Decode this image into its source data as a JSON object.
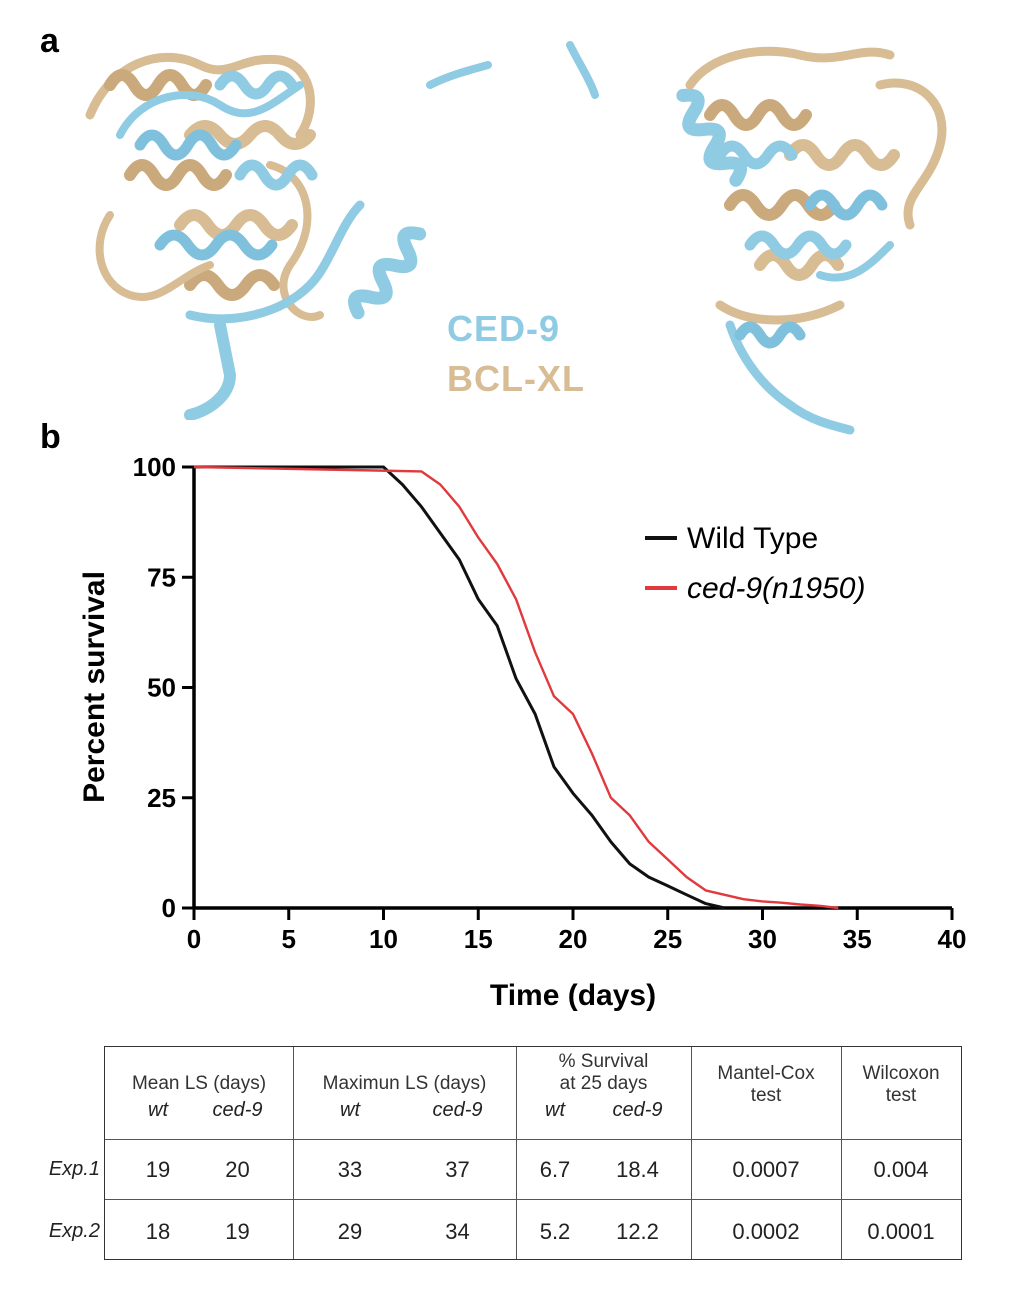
{
  "panel_a": {
    "label": "a",
    "legend": {
      "ced9": "CED-9",
      "bclxl": "BCL-XL"
    },
    "colors": {
      "ced9": "#8fcbe3",
      "bclxl": "#d7bc94"
    }
  },
  "panel_b": {
    "label": "b"
  },
  "chart_data": {
    "type": "line",
    "title": "",
    "xlabel": "Time (days)",
    "ylabel": "Percent survival",
    "xlim": [
      0,
      40
    ],
    "ylim": [
      0,
      100
    ],
    "xticks": [
      "0",
      "5",
      "10",
      "15",
      "20",
      "25",
      "30",
      "35",
      "40"
    ],
    "yticks": [
      "0",
      "25",
      "50",
      "75",
      "100"
    ],
    "grid": false,
    "legend_position": "top-right",
    "series": [
      {
        "name": "Wild Type",
        "color": "#111111",
        "x": [
          0,
          10,
          11,
          12,
          13,
          14,
          15,
          16,
          17,
          18,
          19,
          20,
          21,
          22,
          23,
          24,
          25,
          26,
          27,
          28
        ],
        "y": [
          100,
          100,
          96,
          91,
          85,
          79,
          70,
          64,
          52,
          44,
          32,
          26,
          21,
          15,
          10,
          7,
          5,
          3,
          1,
          0
        ]
      },
      {
        "name": "ced-9(n1950)",
        "color": "#e0393e",
        "x": [
          0,
          12,
          13,
          14,
          15,
          16,
          17,
          18,
          19,
          20,
          21,
          22,
          23,
          24,
          25,
          26,
          27,
          28,
          29,
          30,
          31,
          32,
          33,
          34
        ],
        "y": [
          100,
          99,
          96,
          91,
          84,
          78,
          70,
          58,
          48,
          44,
          35,
          25,
          21,
          15,
          11,
          7,
          4,
          3,
          2,
          1.5,
          1.2,
          0.8,
          0.5,
          0
        ]
      }
    ]
  },
  "table": {
    "header": {
      "mean_ls": "Mean LS (days)",
      "max_ls": "Maximun LS (days)",
      "survival_line1": "% Survival",
      "survival_line2": "at 25 days",
      "mantel_line1": "Mantel-Cox",
      "mantel_line2": "test",
      "wilcoxon_line1": "Wilcoxon",
      "wilcoxon_line2": "test"
    },
    "sub": {
      "wt": "wt",
      "ced9": "ced-9"
    },
    "rows": [
      {
        "label": "Exp.1",
        "mean_wt": "19",
        "mean_ced9": "20",
        "max_wt": "33",
        "max_ced9": "37",
        "surv_wt": "6.7",
        "surv_ced9": "18.4",
        "mantel": "0.0007",
        "wilcoxon": "0.004"
      },
      {
        "label": "Exp.2",
        "mean_wt": "18",
        "mean_ced9": "19",
        "max_wt": "29",
        "max_ced9": "34",
        "surv_wt": "5.2",
        "surv_ced9": "12.2",
        "mantel": "0.0002",
        "wilcoxon": "0.0001"
      }
    ]
  }
}
